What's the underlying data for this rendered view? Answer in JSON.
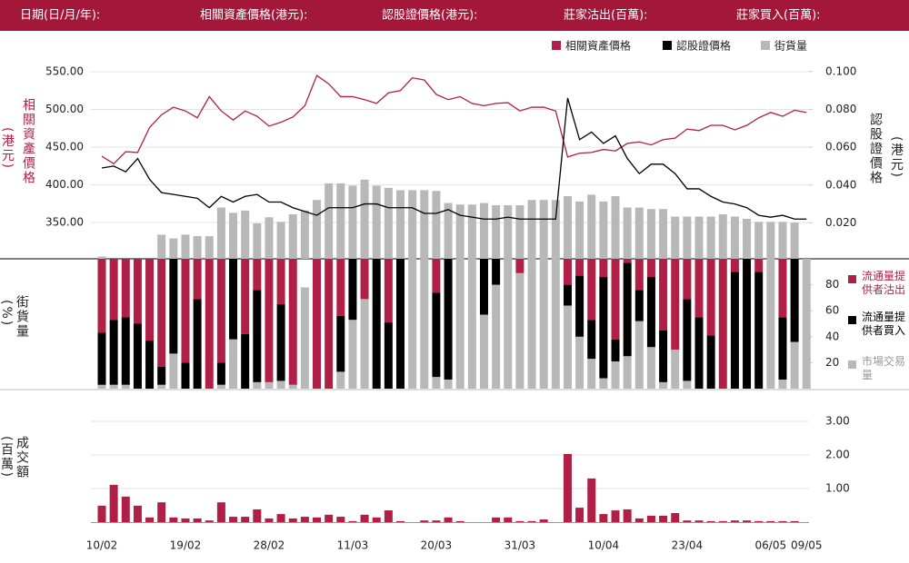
{
  "header": {
    "labels": [
      "日期(日/月/年):",
      "相關資產價格(港元):",
      "認股證價格(港元):",
      "莊家沽出(百萬):",
      "莊家買入(百萬):"
    ]
  },
  "chart_data": [
    {
      "type": "line",
      "y_label": "相關資產價格",
      "y_label_unit": "(港元)",
      "y2_label": "認股證價格",
      "y2_label_unit": "(港元)",
      "ylim": [
        302,
        603
      ],
      "yticks": [
        {
          "value": 550,
          "label": "550.00"
        },
        {
          "value": 500,
          "label": "500.00"
        },
        {
          "value": 450,
          "label": "450.00"
        },
        {
          "value": 400,
          "label": "400.00"
        },
        {
          "value": 350,
          "label": "350.00"
        }
      ],
      "y2lim": [
        0.001,
        0.121
      ],
      "y2ticks": [
        {
          "value": 0.1,
          "label": "0.100"
        },
        {
          "value": 0.08,
          "label": "0.080"
        },
        {
          "value": 0.06,
          "label": "0.060"
        },
        {
          "value": 0.04,
          "label": "0.040"
        },
        {
          "value": 0.02,
          "label": "0.020"
        }
      ],
      "grid": true,
      "legend": "top-right",
      "series": [
        {
          "name": "相關資產價格",
          "color": "#b01f45",
          "type": "line",
          "axis": "y",
          "values": [
            438,
            428,
            444,
            443,
            476,
            493,
            503,
            498,
            489,
            517,
            498,
            486,
            498,
            491,
            478,
            483,
            490,
            505,
            545,
            534,
            517,
            517,
            513,
            508,
            522,
            525,
            542,
            539,
            520,
            513,
            517,
            508,
            505,
            508,
            509,
            498,
            503,
            503,
            498,
            437,
            442,
            443,
            447,
            445,
            455,
            457,
            453,
            460,
            462,
            474,
            472,
            479,
            479,
            473,
            479,
            489,
            496,
            491,
            499,
            496
          ]
        },
        {
          "name": "認股證價格",
          "color": "#000000",
          "type": "line",
          "axis": "y2",
          "values": [
            0.049,
            0.05,
            0.047,
            0.054,
            0.043,
            0.036,
            0.035,
            0.034,
            0.033,
            0.028,
            0.034,
            0.031,
            0.034,
            0.035,
            0.031,
            0.031,
            0.028,
            0.026,
            0.024,
            0.028,
            0.028,
            0.028,
            0.03,
            0.03,
            0.028,
            0.028,
            0.028,
            0.025,
            0.025,
            0.027,
            0.024,
            0.023,
            0.022,
            0.022,
            0.023,
            0.022,
            0.022,
            0.022,
            0.022,
            0.086,
            0.064,
            0.068,
            0.062,
            0.066,
            0.054,
            0.046,
            0.051,
            0.051,
            0.046,
            0.038,
            0.038,
            0.034,
            0.031,
            0.03,
            0.028,
            0.024,
            0.023,
            0.024,
            0.022,
            0.022
          ]
        },
        {
          "name": "街貨量",
          "color": "#b8b8b8",
          "type": "bar",
          "axis": "y",
          "values": [
            305,
            null,
            null,
            null,
            null,
            334,
            329,
            334,
            332,
            332,
            370,
            363,
            366,
            349,
            357,
            351,
            361,
            366,
            380,
            402,
            402,
            399,
            407,
            399,
            396,
            393,
            393,
            393,
            392,
            376,
            374,
            374,
            376,
            373,
            373,
            373,
            380,
            380,
            380,
            385,
            378,
            387,
            378,
            385,
            370,
            370,
            368,
            368,
            358,
            358,
            358,
            358,
            361,
            358,
            355,
            351,
            351,
            351,
            350,
            null
          ]
        }
      ]
    },
    {
      "type": "bar",
      "stacked": true,
      "y_label": "街貨量",
      "y_label_unit": "(%)",
      "ylim": [
        0,
        100
      ],
      "yticks": [
        80,
        60,
        40,
        20
      ],
      "legend": "right",
      "series": [
        {
          "name": "流通量提供者沽出",
          "color": "#b01f45",
          "values": [
            57,
            47,
            45,
            50,
            63,
            83,
            0,
            80,
            31,
            100,
            80,
            0,
            58,
            24,
            95,
            35,
            97,
            0,
            100,
            100,
            44,
            0,
            31,
            0,
            49,
            0,
            0,
            0,
            26,
            0,
            0,
            0,
            0,
            0,
            0,
            11,
            0,
            0,
            0,
            20,
            13,
            47,
            14,
            62,
            3,
            24,
            14,
            55,
            70,
            31,
            45,
            59,
            100,
            10,
            0,
            10,
            0,
            45,
            0,
            0
          ]
        },
        {
          "name": "流通量提供者買入",
          "color": "#000000",
          "values": [
            40,
            50,
            52,
            50,
            37,
            14,
            73,
            20,
            69,
            0,
            17,
            62,
            42,
            71,
            0,
            59,
            0,
            0,
            0,
            0,
            43,
            47,
            0,
            100,
            51,
            100,
            0,
            0,
            65,
            93,
            0,
            0,
            43,
            20,
            0,
            0,
            0,
            0,
            0,
            16,
            47,
            30,
            78,
            17,
            72,
            24,
            54,
            40,
            0,
            63,
            55,
            41,
            0,
            90,
            100,
            90,
            0,
            48,
            64,
            0
          ]
        },
        {
          "name": "市場交易量",
          "color": "#b8b8b8",
          "values": [
            3,
            3,
            3,
            0,
            0,
            3,
            27,
            0,
            0,
            0,
            3,
            38,
            0,
            5,
            5,
            6,
            3,
            78,
            0,
            0,
            13,
            53,
            69,
            0,
            0,
            0,
            100,
            100,
            9,
            7,
            100,
            100,
            57,
            80,
            100,
            89,
            100,
            100,
            100,
            64,
            40,
            23,
            8,
            21,
            25,
            52,
            32,
            5,
            30,
            6,
            0,
            0,
            0,
            0,
            0,
            0,
            100,
            7,
            36,
            100
          ]
        }
      ]
    },
    {
      "type": "bar",
      "stacked": false,
      "y_label": "成交額",
      "y_label_unit": "(百萬)",
      "ylim": [
        0,
        3.38
      ],
      "yticks": [
        {
          "value": 3,
          "label": "3.00"
        },
        {
          "value": 2,
          "label": "2.00"
        },
        {
          "value": 1,
          "label": "1.00"
        }
      ],
      "grid": true,
      "color": "#b01f45",
      "categories": [
        "10/02",
        null,
        null,
        null,
        null,
        null,
        null,
        "19/02",
        null,
        null,
        null,
        null,
        null,
        null,
        "28/02",
        null,
        null,
        null,
        null,
        null,
        null,
        "11/03",
        null,
        null,
        null,
        null,
        null,
        null,
        "20/03",
        null,
        null,
        null,
        null,
        null,
        null,
        "31/03",
        null,
        null,
        null,
        null,
        null,
        null,
        "10/04",
        null,
        null,
        null,
        null,
        null,
        null,
        "23/04",
        null,
        null,
        null,
        null,
        null,
        null,
        "06/05",
        null,
        null,
        "09/05"
      ],
      "values": [
        0.49,
        1.11,
        0.76,
        0.49,
        0.14,
        0.59,
        0.14,
        0.11,
        0.11,
        0.05,
        0.59,
        0.16,
        0.16,
        0.38,
        0.11,
        0.24,
        0.11,
        0.16,
        0.14,
        0.22,
        0.16,
        0.03,
        0.22,
        0.14,
        0.35,
        0.03,
        0,
        0.05,
        0.05,
        0.14,
        0.03,
        0,
        0,
        0.14,
        0.14,
        0.03,
        0.03,
        0.08,
        0,
        2.03,
        0.43,
        1.3,
        0.24,
        0.35,
        0.38,
        0.11,
        0.19,
        0.19,
        0.27,
        0.05,
        0.05,
        0.03,
        0.03,
        0.05,
        0.05,
        0.03,
        0.03,
        0.03,
        0.03,
        0
      ]
    }
  ]
}
